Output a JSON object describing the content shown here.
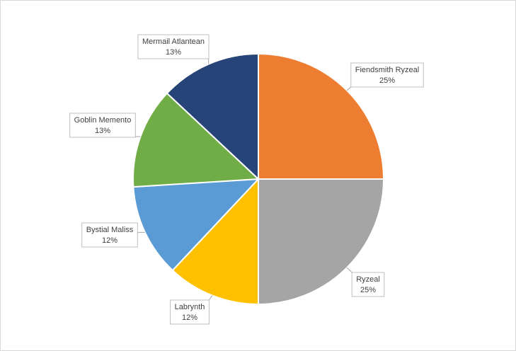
{
  "chart_data": {
    "type": "pie",
    "categories": [
      "Fiendsmith Ryzeal",
      "Ryzeal",
      "Labrynth",
      "Bystial Maliss",
      "Goblin Memento",
      "Mermail Atlantean"
    ],
    "values": [
      25,
      25,
      12,
      12,
      13,
      13
    ],
    "value_labels": [
      "25%",
      "25%",
      "12%",
      "12%",
      "13%",
      "13%"
    ],
    "colors": [
      "#ed7d31",
      "#a5a5a5",
      "#ffc000",
      "#5b9bd5",
      "#70ad47",
      "#264478"
    ]
  }
}
